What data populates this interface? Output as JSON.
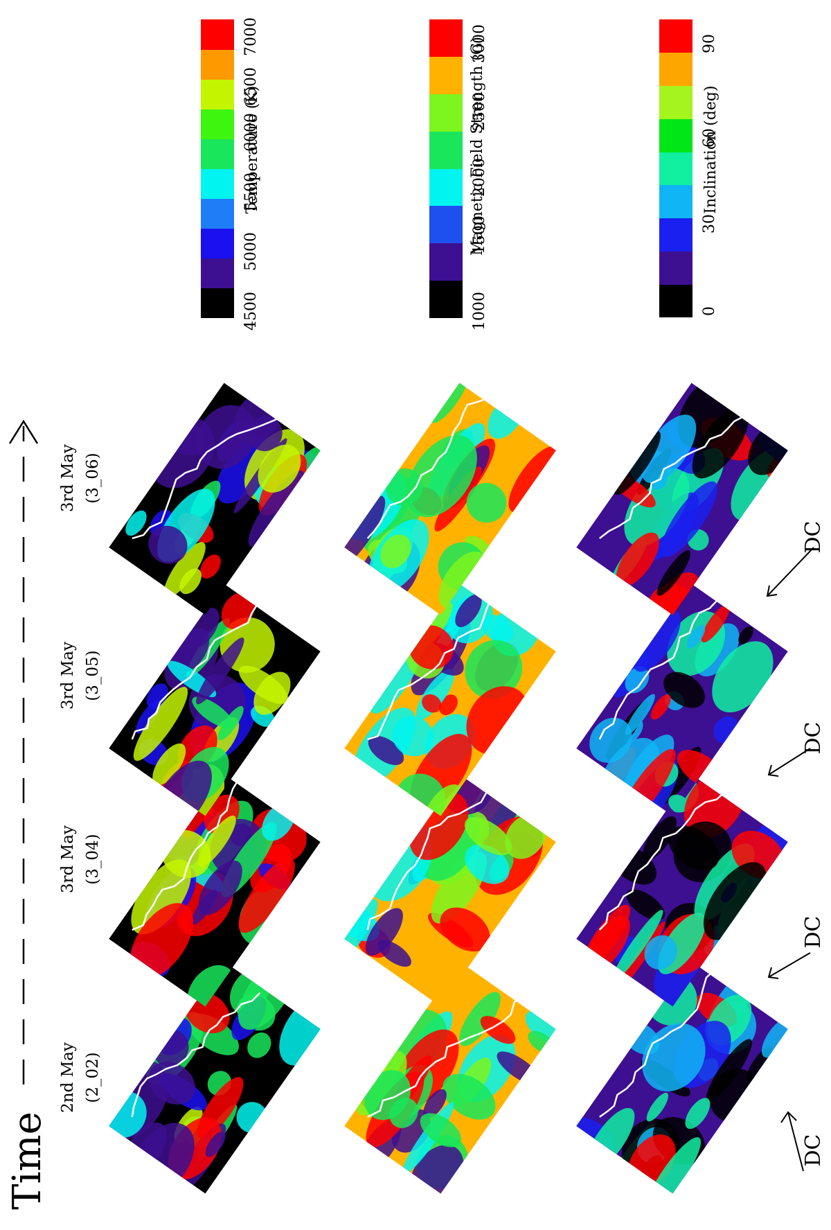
{
  "header": {
    "time_label": "Time"
  },
  "epochs": [
    {
      "date": "2nd May",
      "code": "(2_02)"
    },
    {
      "date": "3rd May",
      "code": "(3_04)"
    },
    {
      "date": "3rd May",
      "code": "(3_05)"
    },
    {
      "date": "3rd May",
      "code": "(3_06)"
    }
  ],
  "dc_labels": [
    "DC",
    "DC",
    "DC",
    "DC"
  ],
  "colorbars": [
    {
      "title": "Temperature (K)",
      "ticks": [
        "4500",
        "5000",
        "5500",
        "6000",
        "6500",
        "7000"
      ],
      "colors": [
        "#000000",
        "#3d0f91",
        "#1a10f0",
        "#1e7ef7",
        "#00f5f0",
        "#19e65a",
        "#3df50f",
        "#c4f500",
        "#ff9900",
        "#ff0000"
      ]
    },
    {
      "title": "Magnetic Field Strength (G)",
      "ticks": [
        "1000",
        "1500",
        "2000",
        "2500",
        "3000"
      ],
      "colors": [
        "#000000",
        "#3d0f91",
        "#1e50f0",
        "#00f5f0",
        "#19e65a",
        "#7df51e",
        "#ffb300",
        "#ff0000"
      ]
    },
    {
      "title": "Inclination (deg)",
      "ticks": [
        "0",
        "30",
        "60",
        "90"
      ],
      "colors": [
        "#000000",
        "#3d0f91",
        "#1a20f0",
        "#10b5f5",
        "#10f0a0",
        "#00e617",
        "#a4f51e",
        "#ffa500",
        "#ff0000"
      ]
    }
  ],
  "colors": {
    "contour": "#ffffff",
    "background": "#ffffff"
  }
}
